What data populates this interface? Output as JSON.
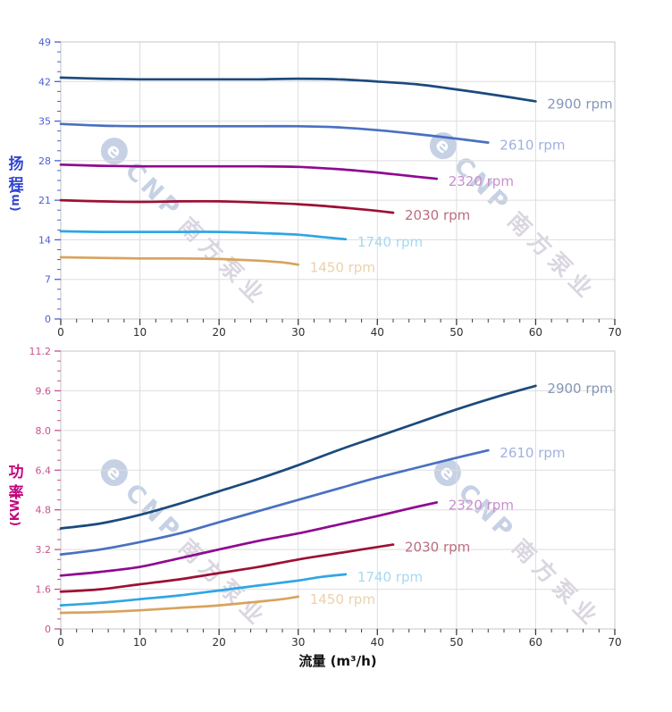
{
  "page": {
    "background": "#ffffff"
  },
  "watermark": {
    "logo_letter": "e",
    "brand": "CNP",
    "company": "南方泵业"
  },
  "styles": {
    "grid_color": "#dddddd",
    "plot_border_color": "#c6c6c6",
    "x_tick_color": "#3c3c3c",
    "x_number_color": "#2f2f2f",
    "x_title_color": "#111111"
  },
  "chart_data": [
    {
      "name": "head-vs-flow",
      "type": "line",
      "title": "",
      "xlabel": "",
      "ylabel": "扬程 (m)",
      "ylabel_chars": [
        "扬",
        "程",
        "(m)"
      ],
      "xlim": [
        0,
        70
      ],
      "ylim": [
        0,
        49
      ],
      "x_tick_labels": [
        "0",
        "10",
        "20",
        "30",
        "40",
        "50",
        "60",
        "70"
      ],
      "x_minor_step": 2,
      "y_tick_labels": [
        "0",
        "7",
        "14",
        "21",
        "28",
        "35",
        "42",
        "49"
      ],
      "y_minor_step": 1.75,
      "grid": true,
      "legend_position": "at-line-end",
      "axis_number_color": "#4a5fd4",
      "axis_title_color": "#3246d2",
      "series": [
        {
          "name": "2900 rpm",
          "color": "#1c4a7c",
          "label_color": "#8497b7",
          "x": [
            0,
            5,
            10,
            15,
            20,
            25,
            30,
            35,
            40,
            45,
            50,
            55,
            60
          ],
          "y": [
            42.7,
            42.5,
            42.4,
            42.4,
            42.4,
            42.4,
            42.5,
            42.4,
            42.0,
            41.5,
            40.6,
            39.6,
            38.5
          ]
        },
        {
          "name": "2610 rpm",
          "color": "#4a70c0",
          "label_color": "#9fb2e0",
          "x": [
            0,
            5,
            10,
            15,
            20,
            25,
            30,
            35,
            40,
            45,
            50,
            54
          ],
          "y": [
            34.5,
            34.2,
            34.1,
            34.1,
            34.1,
            34.1,
            34.1,
            33.9,
            33.4,
            32.7,
            31.9,
            31.2
          ]
        },
        {
          "name": "2320 rpm",
          "color": "#8e0a90",
          "label_color": "#c98fcd",
          "x": [
            0,
            5,
            10,
            15,
            20,
            25,
            30,
            35,
            40,
            44,
            47.5
          ],
          "y": [
            27.3,
            27.1,
            27.0,
            27.0,
            27.0,
            27.0,
            26.9,
            26.5,
            25.9,
            25.3,
            24.8
          ]
        },
        {
          "name": "2030 rpm",
          "color": "#9c1034",
          "label_color": "#bb6e80",
          "x": [
            0,
            5,
            10,
            15,
            20,
            25,
            30,
            34,
            38,
            42
          ],
          "y": [
            21.0,
            20.8,
            20.7,
            20.8,
            20.8,
            20.6,
            20.3,
            19.9,
            19.4,
            18.8
          ]
        },
        {
          "name": "1740 rpm",
          "color": "#2fa6e4",
          "label_color": "#a6d8f2",
          "x": [
            0,
            5,
            10,
            15,
            20,
            25,
            30,
            33,
            36
          ],
          "y": [
            15.5,
            15.4,
            15.4,
            15.4,
            15.4,
            15.2,
            14.9,
            14.5,
            14.1
          ]
        },
        {
          "name": "1450 rpm",
          "color": "#d8a35d",
          "label_color": "#ebd2a9",
          "x": [
            0,
            5,
            10,
            15,
            20,
            25,
            28,
            30
          ],
          "y": [
            10.9,
            10.8,
            10.7,
            10.7,
            10.6,
            10.3,
            10.0,
            9.6
          ]
        }
      ]
    },
    {
      "name": "power-vs-flow",
      "type": "line",
      "title": "",
      "xlabel": "流量 (m³/h)",
      "ylabel": "功率 (KW)",
      "ylabel_chars": [
        "功",
        "率",
        "(KW)"
      ],
      "xlim": [
        0,
        70
      ],
      "ylim": [
        0,
        11.2
      ],
      "x_tick_labels": [
        "0",
        "10",
        "20",
        "30",
        "40",
        "50",
        "60",
        "70"
      ],
      "x_minor_step": 2,
      "y_tick_labels": [
        "0",
        "1.6",
        "3.2",
        "4.8",
        "6.4",
        "8.0",
        "9.6",
        "11.2"
      ],
      "y_minor_step": 0.4,
      "grid": true,
      "legend_position": "at-line-end",
      "axis_number_color": "#c9518f",
      "axis_title_color": "#c1067e",
      "series": [
        {
          "name": "2900 rpm",
          "color": "#1c4a7c",
          "label_color": "#8497b7",
          "x": [
            0,
            5,
            10,
            15,
            20,
            25,
            30,
            35,
            40,
            45,
            50,
            55,
            60
          ],
          "y": [
            4.05,
            4.25,
            4.6,
            5.05,
            5.55,
            6.05,
            6.6,
            7.2,
            7.75,
            8.3,
            8.85,
            9.35,
            9.8
          ]
        },
        {
          "name": "2610 rpm",
          "color": "#4a70c0",
          "label_color": "#9fb2e0",
          "x": [
            0,
            5,
            10,
            15,
            20,
            25,
            30,
            35,
            40,
            45,
            50,
            54
          ],
          "y": [
            3.0,
            3.2,
            3.5,
            3.85,
            4.3,
            4.75,
            5.2,
            5.65,
            6.1,
            6.5,
            6.9,
            7.2
          ]
        },
        {
          "name": "2320 rpm",
          "color": "#8e0a90",
          "label_color": "#c98fcd",
          "x": [
            0,
            5,
            10,
            15,
            20,
            25,
            30,
            35,
            40,
            44,
            47.5
          ],
          "y": [
            2.15,
            2.3,
            2.5,
            2.85,
            3.2,
            3.55,
            3.85,
            4.2,
            4.55,
            4.85,
            5.1
          ]
        },
        {
          "name": "2030 rpm",
          "color": "#9c1034",
          "label_color": "#bb6e80",
          "x": [
            0,
            5,
            10,
            15,
            20,
            25,
            30,
            34,
            38,
            42
          ],
          "y": [
            1.5,
            1.6,
            1.8,
            2.0,
            2.25,
            2.5,
            2.8,
            3.0,
            3.2,
            3.4
          ]
        },
        {
          "name": "1740 rpm",
          "color": "#2fa6e4",
          "label_color": "#a6d8f2",
          "x": [
            0,
            5,
            10,
            15,
            20,
            25,
            30,
            33,
            36
          ],
          "y": [
            0.95,
            1.05,
            1.2,
            1.35,
            1.55,
            1.75,
            1.95,
            2.1,
            2.2
          ]
        },
        {
          "name": "1450 rpm",
          "color": "#d8a35d",
          "label_color": "#ebd2a9",
          "x": [
            0,
            5,
            10,
            15,
            20,
            25,
            28,
            30
          ],
          "y": [
            0.65,
            0.68,
            0.75,
            0.85,
            0.95,
            1.1,
            1.2,
            1.3
          ]
        }
      ]
    }
  ]
}
